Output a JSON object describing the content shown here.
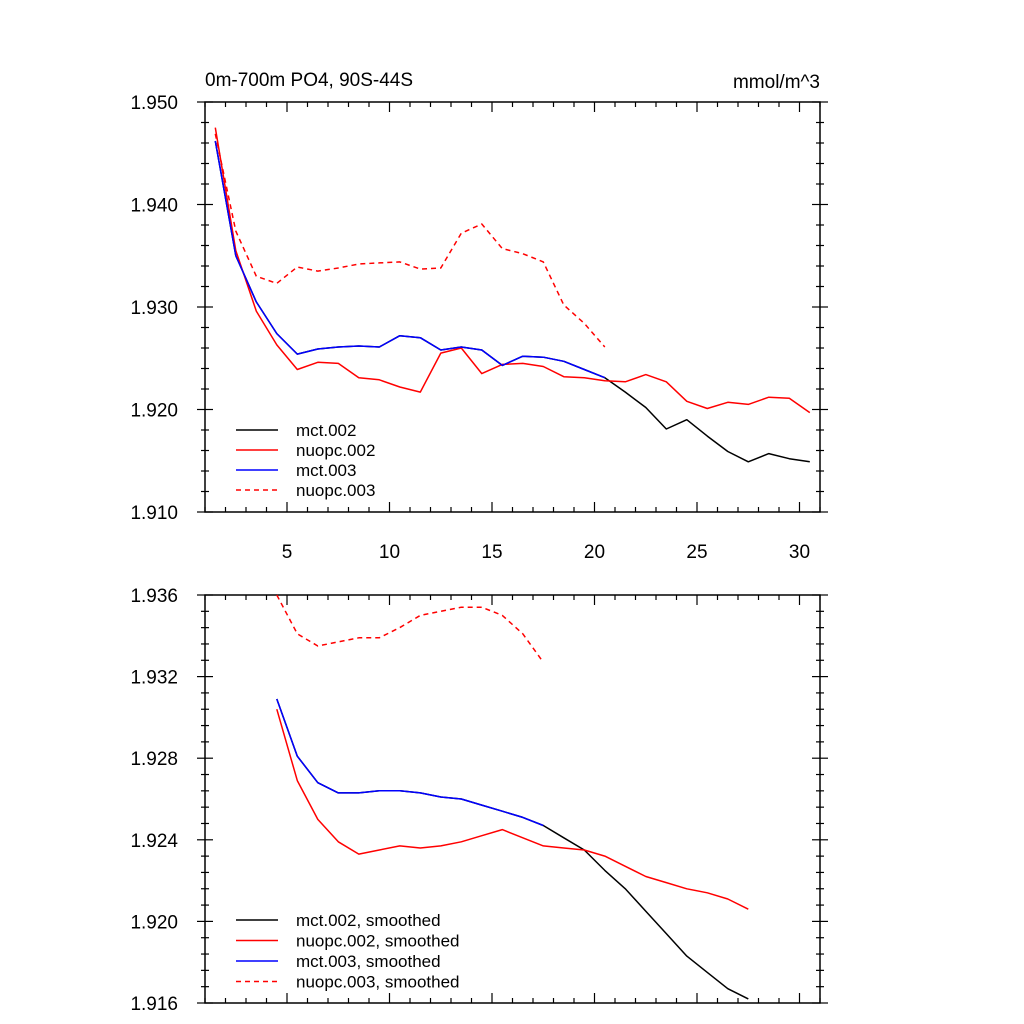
{
  "chart_data": [
    {
      "type": "line",
      "title_left": "0m-700m PO4, 90S-44S",
      "title_right": "mmol/m^3",
      "xlabel": "",
      "ylabel": "",
      "xlim": [
        1,
        31
      ],
      "ylim": [
        1.91,
        1.95
      ],
      "xticks": [
        5,
        10,
        15,
        20,
        25,
        30
      ],
      "xtick_labels": [
        "5",
        "10",
        "15",
        "20",
        "25",
        "30"
      ],
      "yticks": [
        1.91,
        1.92,
        1.93,
        1.94,
        1.95
      ],
      "ytick_labels": [
        "1.910",
        "1.920",
        "1.930",
        "1.940",
        "1.950"
      ],
      "legend_position": "bottom-left",
      "series": [
        {
          "name": "mct.002",
          "color": "#000000",
          "dash": "solid",
          "x": [
            1.5,
            2.5,
            3.5,
            4.5,
            5.5,
            6.5,
            7.5,
            8.5,
            9.5,
            10.5,
            11.5,
            12.5,
            13.5,
            14.5,
            15.5,
            16.5,
            17.5,
            18.5,
            19.5,
            20.5,
            21.5,
            22.5,
            23.5,
            24.5,
            25.5,
            26.5,
            27.5,
            28.5,
            29.5,
            30.5
          ],
          "values": [
            1.9462,
            1.935,
            1.9305,
            1.9274,
            1.9254,
            1.9259,
            1.9261,
            1.9262,
            1.9261,
            1.9272,
            1.927,
            1.9258,
            1.9261,
            1.9258,
            1.9243,
            1.9252,
            1.9251,
            1.9247,
            1.9239,
            1.9231,
            1.9217,
            1.9202,
            1.9181,
            1.919,
            1.9174,
            1.9159,
            1.9149,
            1.9157,
            1.9152,
            1.9149
          ]
        },
        {
          "name": "nuopc.002",
          "color": "#ff0000",
          "dash": "solid",
          "x": [
            1.5,
            2.5,
            3.5,
            4.5,
            5.5,
            6.5,
            7.5,
            8.5,
            9.5,
            10.5,
            11.5,
            12.5,
            13.5,
            14.5,
            15.5,
            16.5,
            17.5,
            18.5,
            19.5,
            20.5,
            21.5,
            22.5,
            23.5,
            24.5,
            25.5,
            26.5,
            27.5,
            28.5,
            29.5,
            30.5
          ],
          "values": [
            1.9475,
            1.9355,
            1.9296,
            1.9263,
            1.9239,
            1.9246,
            1.9245,
            1.9231,
            1.9229,
            1.9222,
            1.9217,
            1.9255,
            1.926,
            1.9235,
            1.9244,
            1.9245,
            1.9242,
            1.9232,
            1.9231,
            1.9228,
            1.9227,
            1.9234,
            1.9227,
            1.9208,
            1.9201,
            1.9207,
            1.9205,
            1.9212,
            1.9211,
            1.9197
          ]
        },
        {
          "name": "mct.003",
          "color": "#0000ff",
          "dash": "solid",
          "x": [
            1.5,
            2.5,
            3.5,
            4.5,
            5.5,
            6.5,
            7.5,
            8.5,
            9.5,
            10.5,
            11.5,
            12.5,
            13.5,
            14.5,
            15.5,
            16.5,
            17.5,
            18.5,
            19.5,
            20.5
          ],
          "values": [
            1.9462,
            1.935,
            1.9305,
            1.9274,
            1.9254,
            1.9259,
            1.9261,
            1.9262,
            1.9261,
            1.9272,
            1.927,
            1.9258,
            1.9261,
            1.9258,
            1.9243,
            1.9252,
            1.9251,
            1.9247,
            1.9239,
            1.9231
          ]
        },
        {
          "name": "nuopc.003",
          "color": "#ff0000",
          "dash": "dashed",
          "x": [
            1.5,
            2.5,
            3.5,
            4.5,
            5.5,
            6.5,
            7.5,
            8.5,
            9.5,
            10.5,
            11.5,
            12.5,
            13.5,
            14.5,
            15.5,
            16.5,
            17.5,
            18.5,
            19.5,
            20.5
          ],
          "values": [
            1.9469,
            1.9374,
            1.933,
            1.9323,
            1.9339,
            1.9335,
            1.9338,
            1.9342,
            1.9343,
            1.9344,
            1.9337,
            1.9338,
            1.9372,
            1.9381,
            1.9357,
            1.9352,
            1.9344,
            1.9302,
            1.9284,
            1.9261
          ]
        }
      ]
    },
    {
      "type": "line",
      "title_left": "",
      "title_right": "",
      "xlabel": "",
      "ylabel": "",
      "xlim": [
        1,
        31
      ],
      "ylim": [
        1.916,
        1.936
      ],
      "xticks": [
        5,
        10,
        15,
        20,
        25,
        30
      ],
      "xtick_labels": [],
      "yticks": [
        1.916,
        1.92,
        1.924,
        1.928,
        1.932,
        1.936
      ],
      "ytick_labels": [
        "1.916",
        "1.920",
        "1.924",
        "1.928",
        "1.932",
        "1.936"
      ],
      "legend_position": "bottom-left",
      "series": [
        {
          "name": "mct.002, smoothed",
          "color": "#000000",
          "dash": "solid",
          "x": [
            4.5,
            5.5,
            6.5,
            7.5,
            8.5,
            9.5,
            10.5,
            11.5,
            12.5,
            13.5,
            14.5,
            15.5,
            16.5,
            17.5,
            18.5,
            19.5,
            20.5,
            21.5,
            22.5,
            23.5,
            24.5,
            25.5,
            26.5,
            27.5
          ],
          "values": [
            1.9309,
            1.9281,
            1.9268,
            1.9263,
            1.9263,
            1.9264,
            1.9264,
            1.9263,
            1.9261,
            1.926,
            1.9257,
            1.9254,
            1.9251,
            1.9247,
            1.9241,
            1.9235,
            1.9225,
            1.9216,
            1.9205,
            1.9194,
            1.9183,
            1.9175,
            1.9167,
            1.9162
          ]
        },
        {
          "name": "nuopc.002, smoothed",
          "color": "#ff0000",
          "dash": "solid",
          "x": [
            4.5,
            5.5,
            6.5,
            7.5,
            8.5,
            9.5,
            10.5,
            11.5,
            12.5,
            13.5,
            14.5,
            15.5,
            16.5,
            17.5,
            18.5,
            19.5,
            20.5,
            21.5,
            22.5,
            23.5,
            24.5,
            25.5,
            26.5,
            27.5
          ],
          "values": [
            1.9304,
            1.9269,
            1.925,
            1.9239,
            1.9233,
            1.9235,
            1.9237,
            1.9236,
            1.9237,
            1.9239,
            1.9242,
            1.9245,
            1.9241,
            1.9237,
            1.9236,
            1.9235,
            1.9232,
            1.9227,
            1.9222,
            1.9219,
            1.9216,
            1.9214,
            1.9211,
            1.9206
          ]
        },
        {
          "name": "mct.003, smoothed",
          "color": "#0000ff",
          "dash": "solid",
          "x": [
            4.5,
            5.5,
            6.5,
            7.5,
            8.5,
            9.5,
            10.5,
            11.5,
            12.5,
            13.5,
            14.5,
            15.5,
            16.5,
            17.5
          ],
          "values": [
            1.9309,
            1.9281,
            1.9268,
            1.9263,
            1.9263,
            1.9264,
            1.9264,
            1.9263,
            1.9261,
            1.926,
            1.9257,
            1.9254,
            1.9251,
            1.9247
          ]
        },
        {
          "name": "nuopc.003, smoothed",
          "color": "#ff0000",
          "dash": "dashed",
          "x": [
            4.5,
            5.5,
            6.5,
            7.5,
            8.5,
            9.5,
            10.5,
            11.5,
            12.5,
            13.5,
            14.5,
            15.5,
            16.5,
            17.5
          ],
          "values": [
            1.936,
            1.9341,
            1.9335,
            1.9337,
            1.9339,
            1.9339,
            1.9344,
            1.935,
            1.9352,
            1.9354,
            1.9354,
            1.935,
            1.9341,
            1.9327
          ]
        }
      ]
    }
  ]
}
